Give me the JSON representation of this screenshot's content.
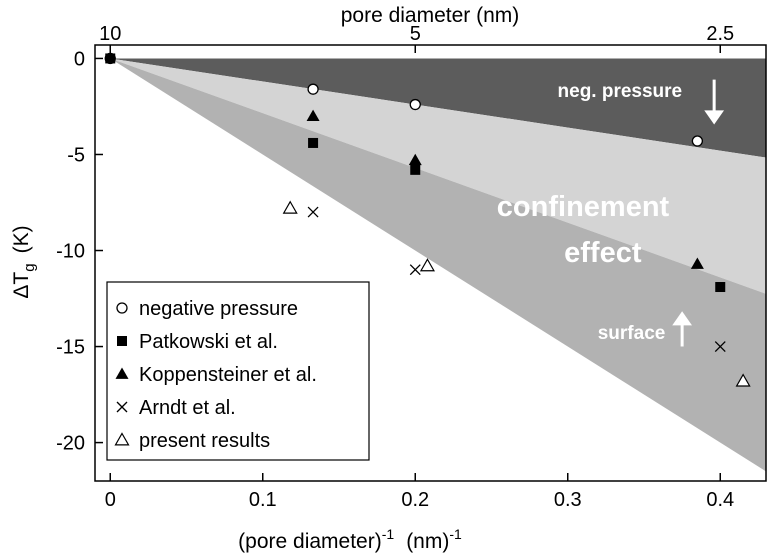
{
  "chart_data": {
    "type": "scatter",
    "xlabel": "(pore diameter)",
    "xlabel_sup1": "-1",
    "xlabel_unit": "(nm)",
    "xlabel_sup2": "-1",
    "ylabel_main": "ΔT",
    "ylabel_sub": "g",
    "ylabel_unit": "(K)",
    "top_axis_label": "pore diameter (nm)",
    "xlim": [
      -0.01,
      0.43
    ],
    "ylim": [
      -22,
      0.7
    ],
    "x_ticks": [
      {
        "value": 0,
        "label": "0"
      },
      {
        "value": 0.1,
        "label": "0.1"
      },
      {
        "value": 0.2,
        "label": "0.2"
      },
      {
        "value": 0.3,
        "label": "0.3"
      },
      {
        "value": 0.4,
        "label": "0.4"
      }
    ],
    "y_ticks": [
      {
        "value": 0,
        "label": "0"
      },
      {
        "value": -5,
        "label": "-5"
      },
      {
        "value": -10,
        "label": "-10"
      },
      {
        "value": -15,
        "label": "-15"
      },
      {
        "value": -20,
        "label": "-20"
      }
    ],
    "top_ticks": [
      {
        "value": 0,
        "label": "10"
      },
      {
        "value": 0.2,
        "label": "5"
      },
      {
        "value": 0.4,
        "label": "2.5"
      }
    ],
    "regions": [
      {
        "name": "neg. pressure",
        "slope": -12,
        "color": "#5c5c5c"
      },
      {
        "name": "confinement effect",
        "slope": -28.5,
        "color": "#d4d4d4"
      },
      {
        "name": "surface",
        "slope": -50,
        "color": "#b2b2b2"
      }
    ],
    "annotations": {
      "neg_pressure": "neg. pressure",
      "confinement_1": "confinement",
      "confinement_2": "effect",
      "surface": "surface"
    },
    "series": [
      {
        "name": "negative pressure",
        "marker": "circle-open",
        "x": [
          0,
          0.133,
          0.2,
          0.385
        ],
        "y": [
          0,
          -1.6,
          -2.4,
          -4.3
        ]
      },
      {
        "name": "Patkowski et al.",
        "marker": "square-filled",
        "x": [
          0,
          0.133,
          0.2,
          0.4
        ],
        "y": [
          0,
          -4.4,
          -5.8,
          -11.9
        ]
      },
      {
        "name": "Koppensteiner et al.",
        "marker": "triangle-filled",
        "x": [
          0.133,
          0.2,
          0.385
        ],
        "y": [
          -3.0,
          -5.3,
          -10.7
        ]
      },
      {
        "name": "Arndt et al.",
        "marker": "cross",
        "x": [
          0.133,
          0.2,
          0.4
        ],
        "y": [
          -8.0,
          -11.0,
          -15.0
        ]
      },
      {
        "name": "present results",
        "marker": "triangle-open",
        "x": [
          0.118,
          0.208,
          0.415
        ],
        "y": [
          -7.8,
          -10.8,
          -16.8
        ]
      }
    ],
    "legend_position": "bottom-left"
  }
}
